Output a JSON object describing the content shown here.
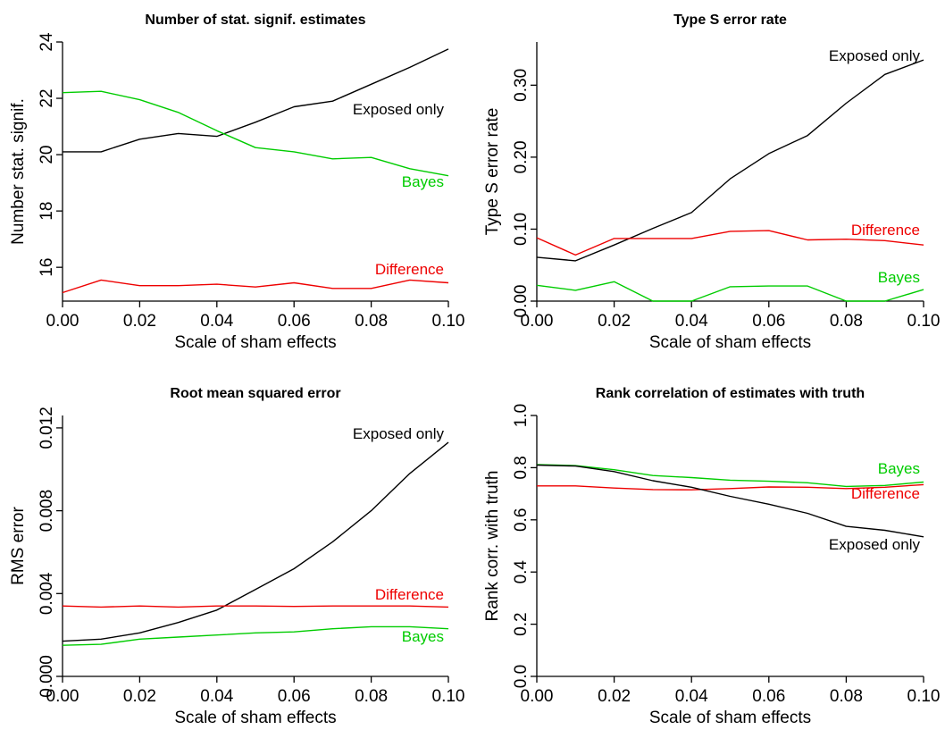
{
  "chart_data": [
    {
      "type": "line",
      "title": "Number of stat. signif. estimates",
      "xlabel": "Scale of sham effects",
      "ylabel": "Number stat. signif.",
      "x": [
        0.0,
        0.01,
        0.02,
        0.03,
        0.04,
        0.05,
        0.06,
        0.07,
        0.08,
        0.09,
        0.1
      ],
      "xlim": [
        0,
        0.1
      ],
      "ylim": [
        14.8,
        24
      ],
      "xticks": [
        "0.00",
        "0.02",
        "0.04",
        "0.06",
        "0.08",
        "0.10"
      ],
      "yticks": [
        "16",
        "18",
        "20",
        "22",
        "24"
      ],
      "series": [
        {
          "name": "Exposed only",
          "color": "#000000",
          "values": [
            20.1,
            20.1,
            20.55,
            20.75,
            20.65,
            21.15,
            21.7,
            21.9,
            22.5,
            23.1,
            23.75
          ]
        },
        {
          "name": "Bayes",
          "color": "#00cc00",
          "values": [
            22.2,
            22.25,
            21.95,
            21.5,
            20.85,
            20.25,
            20.1,
            19.85,
            19.9,
            19.5,
            19.25
          ]
        },
        {
          "name": "Difference",
          "color": "#ee0000",
          "values": [
            15.1,
            15.55,
            15.35,
            15.35,
            15.4,
            15.3,
            15.45,
            15.25,
            15.25,
            15.55,
            15.45
          ]
        }
      ]
    },
    {
      "type": "line",
      "title": "Type S error rate",
      "xlabel": "Scale of sham effects",
      "ylabel": "Type S error rate",
      "x": [
        0.0,
        0.01,
        0.02,
        0.03,
        0.04,
        0.05,
        0.06,
        0.07,
        0.08,
        0.09,
        0.1
      ],
      "xlim": [
        0,
        0.1
      ],
      "ylim": [
        0,
        0.36
      ],
      "xticks": [
        "0.00",
        "0.02",
        "0.04",
        "0.06",
        "0.08",
        "0.10"
      ],
      "yticks": [
        "0.00",
        "0.10",
        "0.20",
        "0.30"
      ],
      "series": [
        {
          "name": "Exposed only",
          "color": "#000000",
          "values": [
            0.061,
            0.056,
            0.078,
            0.101,
            0.123,
            0.17,
            0.205,
            0.23,
            0.275,
            0.315,
            0.335
          ]
        },
        {
          "name": "Difference",
          "color": "#ee0000",
          "values": [
            0.088,
            0.064,
            0.087,
            0.087,
            0.087,
            0.097,
            0.098,
            0.085,
            0.086,
            0.084,
            0.078
          ]
        },
        {
          "name": "Bayes",
          "color": "#00cc00",
          "values": [
            0.022,
            0.015,
            0.027,
            0.0,
            0.0,
            0.02,
            0.021,
            0.021,
            0.0,
            0.0,
            0.016
          ]
        }
      ]
    },
    {
      "type": "line",
      "title": "Root mean squared error",
      "xlabel": "Scale of sham effects",
      "ylabel": "RMS error",
      "x": [
        0.0,
        0.01,
        0.02,
        0.03,
        0.04,
        0.05,
        0.06,
        0.07,
        0.08,
        0.09,
        0.1
      ],
      "xlim": [
        0,
        0.1
      ],
      "ylim": [
        0,
        0.0126
      ],
      "xticks": [
        "0.00",
        "0.02",
        "0.04",
        "0.06",
        "0.08",
        "0.10"
      ],
      "yticks": [
        "0.000",
        "0.004",
        "0.008",
        "0.012"
      ],
      "series": [
        {
          "name": "Exposed only",
          "color": "#000000",
          "values": [
            0.0017,
            0.0018,
            0.0021,
            0.0026,
            0.0032,
            0.0042,
            0.0052,
            0.0065,
            0.008,
            0.0098,
            0.0113
          ]
        },
        {
          "name": "Difference",
          "color": "#ee0000",
          "values": [
            0.0034,
            0.00335,
            0.0034,
            0.00335,
            0.0034,
            0.0034,
            0.00338,
            0.0034,
            0.0034,
            0.0034,
            0.00335
          ]
        },
        {
          "name": "Bayes",
          "color": "#00cc00",
          "values": [
            0.0015,
            0.00155,
            0.0018,
            0.0019,
            0.002,
            0.0021,
            0.00215,
            0.0023,
            0.0024,
            0.0024,
            0.0023
          ]
        }
      ]
    },
    {
      "type": "line",
      "title": "Rank correlation of estimates with truth",
      "xlabel": "Scale of sham effects",
      "ylabel": "Rank corr. with truth",
      "x": [
        0.0,
        0.01,
        0.02,
        0.03,
        0.04,
        0.05,
        0.06,
        0.07,
        0.08,
        0.09,
        0.1
      ],
      "xlim": [
        0,
        0.1
      ],
      "ylim": [
        0,
        1.0
      ],
      "xticks": [
        "0.00",
        "0.02",
        "0.04",
        "0.06",
        "0.08",
        "0.10"
      ],
      "yticks": [
        "0.0",
        "0.2",
        "0.4",
        "0.6",
        "0.8",
        "1.0"
      ],
      "series": [
        {
          "name": "Bayes",
          "color": "#00cc00",
          "values": [
            0.812,
            0.808,
            0.792,
            0.77,
            0.762,
            0.752,
            0.748,
            0.742,
            0.728,
            0.732,
            0.745
          ]
        },
        {
          "name": "Difference",
          "color": "#ee0000",
          "values": [
            0.73,
            0.73,
            0.722,
            0.716,
            0.715,
            0.72,
            0.726,
            0.725,
            0.72,
            0.725,
            0.735
          ]
        },
        {
          "name": "Exposed only",
          "color": "#000000",
          "values": [
            0.81,
            0.806,
            0.785,
            0.75,
            0.725,
            0.69,
            0.66,
            0.625,
            0.575,
            0.56,
            0.535
          ]
        }
      ]
    }
  ]
}
